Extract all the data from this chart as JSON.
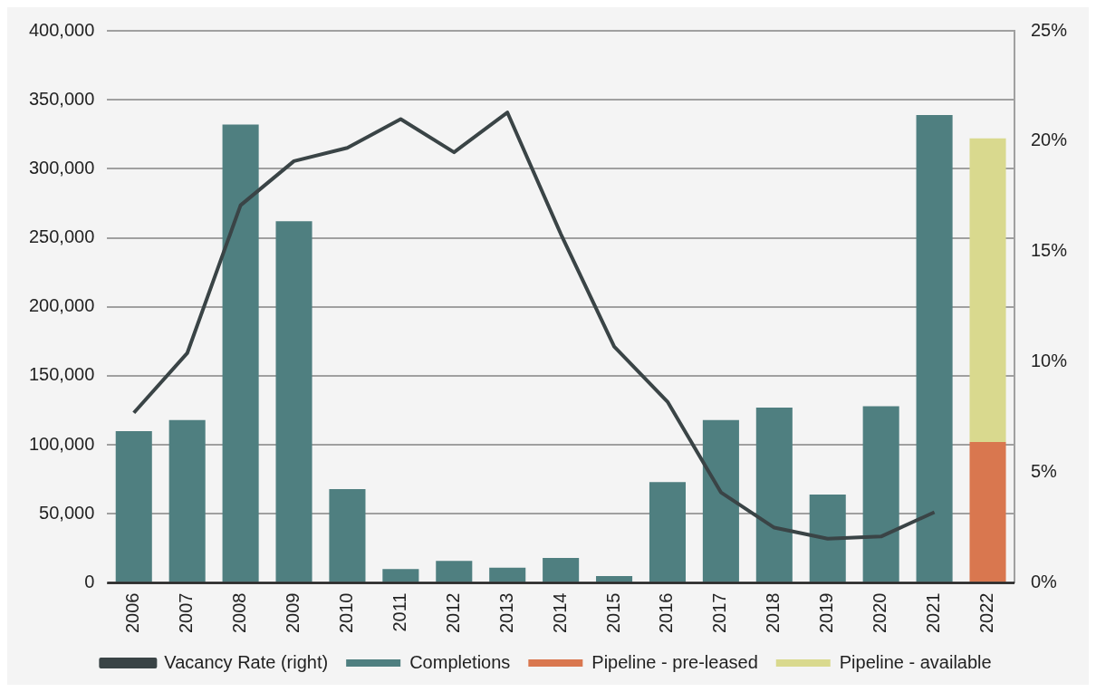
{
  "chart_data": {
    "type": "bar",
    "stacked": true,
    "categories": [
      "2006",
      "2007",
      "2008",
      "2009",
      "2010",
      "2011",
      "2012",
      "2013",
      "2014",
      "2015",
      "2016",
      "2017",
      "2018",
      "2019",
      "2020",
      "2021",
      "2022"
    ],
    "series": [
      {
        "name": "Completions",
        "color": "#4f7f80",
        "values": [
          110000,
          118000,
          332000,
          262000,
          68000,
          10000,
          16000,
          11000,
          18000,
          5000,
          73000,
          118000,
          127000,
          64000,
          128000,
          339000,
          null
        ]
      },
      {
        "name": "Pipeline - pre-leased",
        "color": "#d9774f",
        "values": [
          null,
          null,
          null,
          null,
          null,
          null,
          null,
          null,
          null,
          null,
          null,
          null,
          null,
          null,
          null,
          null,
          102000
        ]
      },
      {
        "name": "Pipeline - available",
        "color": "#d9d98e",
        "values": [
          null,
          null,
          null,
          null,
          null,
          null,
          null,
          null,
          null,
          null,
          null,
          null,
          null,
          null,
          null,
          null,
          220000
        ]
      },
      {
        "name": "Vacancy Rate (right)",
        "type": "line",
        "axis": "y2",
        "color": "#3a4446",
        "values": [
          7.7,
          10.4,
          17.1,
          19.1,
          19.7,
          21.0,
          19.5,
          21.3,
          15.8,
          10.7,
          8.2,
          4.1,
          2.5,
          2.0,
          2.1,
          3.2,
          null
        ]
      }
    ],
    "ylim": [
      0,
      400000
    ],
    "yticks": [
      {
        "value": 0,
        "label": "0"
      },
      {
        "value": 50000,
        "label": "50,000"
      },
      {
        "value": 100000,
        "label": "100,000"
      },
      {
        "value": 150000,
        "label": "150,000"
      },
      {
        "value": 200000,
        "label": "200,000"
      },
      {
        "value": 250000,
        "label": "250,000"
      },
      {
        "value": 300000,
        "label": "300,000"
      },
      {
        "value": 350000,
        "label": "350,000"
      },
      {
        "value": 400000,
        "label": "400,000"
      }
    ],
    "y2lim": [
      0,
      25
    ],
    "y2ticks": [
      {
        "value": 0,
        "label": "0%"
      },
      {
        "value": 5,
        "label": "5%"
      },
      {
        "value": 10,
        "label": "10%"
      },
      {
        "value": 15,
        "label": "15%"
      },
      {
        "value": 20,
        "label": "20%"
      },
      {
        "value": 25,
        "label": "25%"
      }
    ],
    "grid": "y",
    "legend": "bottom",
    "marker": "none"
  }
}
